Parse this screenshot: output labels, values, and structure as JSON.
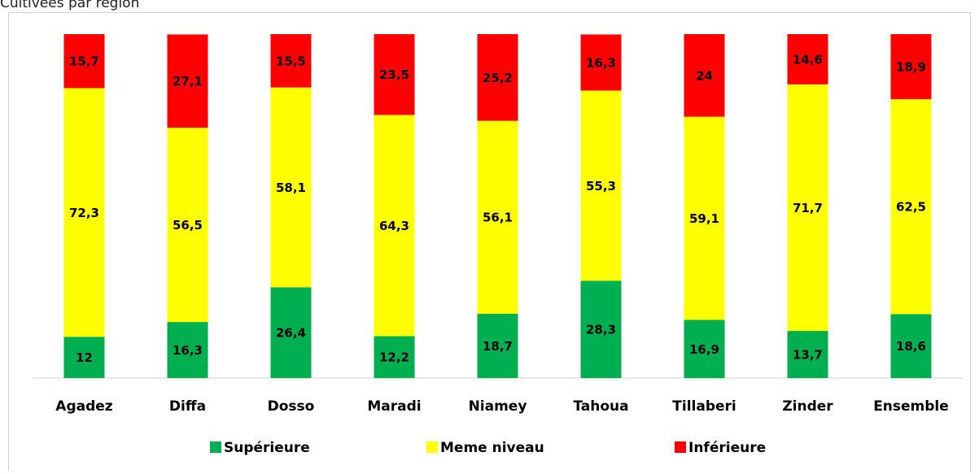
{
  "chart_data": {
    "type": "stacked_bar",
    "title": "Cultivées par région",
    "categories": [
      "Agadez",
      "Diffa",
      "Dosso",
      "Maradi",
      "Niamey",
      "Tahoua",
      "Tillaberi",
      "Zinder",
      "Ensemble"
    ],
    "series": [
      {
        "name": "Supérieure",
        "color": "#00b050",
        "values": [
          12,
          16.3,
          26.4,
          12.2,
          18.7,
          28.3,
          16.9,
          13.7,
          18.6
        ],
        "value_labels": [
          "12",
          "16,3",
          "26,4",
          "12,2",
          "18,7",
          "28,3",
          "16,9",
          "13,7",
          "18,6"
        ]
      },
      {
        "name": "Meme niveau",
        "color": "#ffff00",
        "values": [
          72.3,
          56.5,
          58.1,
          64.3,
          56.1,
          55.3,
          59.1,
          71.7,
          62.5
        ],
        "value_labels": [
          "72,3",
          "56,5",
          "58,1",
          "64,3",
          "56,1",
          "55,3",
          "59,1",
          "71,7",
          "62,5"
        ]
      },
      {
        "name": "Inférieure",
        "color": "#ff0000",
        "values": [
          15.7,
          27.1,
          15.5,
          23.5,
          25.2,
          16.3,
          24,
          14.6,
          18.9
        ],
        "value_labels": [
          "15,7",
          "27,1",
          "15,5",
          "23,5",
          "25,2",
          "16,3",
          "24",
          "14,6",
          "18,9"
        ]
      }
    ],
    "ylim": [
      0,
      100
    ],
    "legend": "bottom"
  }
}
